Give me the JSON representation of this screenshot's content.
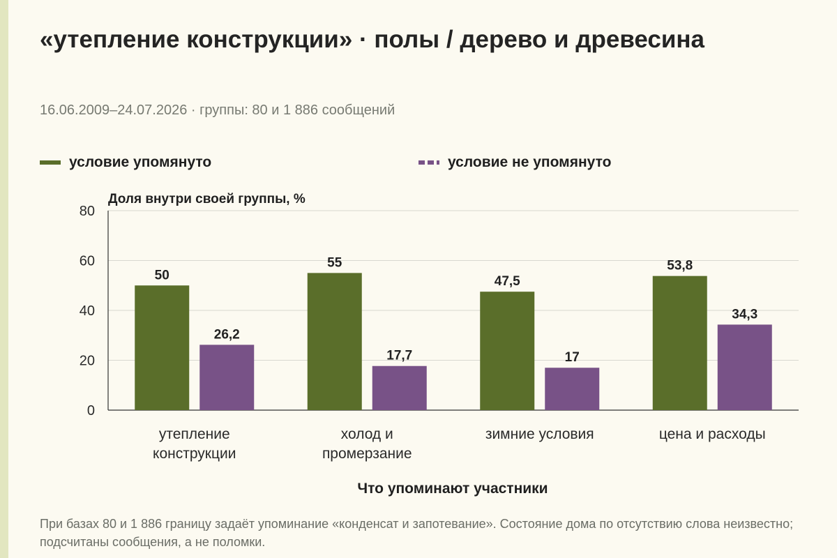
{
  "header": {
    "title": "«утепление конструкции» · полы / дерево и древесина",
    "subtitle": "16.06.2009–24.07.2026 · группы: 80 и 1 886 сообщений"
  },
  "legend": [
    {
      "label": "условие упомянуто",
      "style": "solid",
      "color": "#5a6e2a"
    },
    {
      "label": "условие не упомянуто",
      "style": "dashed",
      "color": "#785287"
    }
  ],
  "chart_data": {
    "type": "bar",
    "ylabel": "Доля внутри своей группы, %",
    "xlabel": "Что упоминают участники",
    "ylim": [
      0,
      80
    ],
    "yticks": [
      0,
      20,
      40,
      60,
      80
    ],
    "grid": true,
    "legend_position": "top",
    "categories": [
      [
        "утепление",
        "конструкции"
      ],
      [
        "холод и",
        "промерзание"
      ],
      [
        "зимние условия"
      ],
      [
        "цена и расходы"
      ]
    ],
    "series": [
      {
        "name": "условие упомянуто",
        "color": "#5a6e2a",
        "values": [
          50,
          55,
          47.5,
          53.8
        ],
        "labels": [
          "50",
          "55",
          "47,5",
          "53,8"
        ]
      },
      {
        "name": "условие не упомянуто",
        "color": "#785287",
        "values": [
          26.2,
          17.7,
          17,
          34.3
        ],
        "labels": [
          "26,2",
          "17,7",
          "17",
          "34,3"
        ]
      }
    ]
  },
  "footer": {
    "note": "При базах 80 и 1 886 границу задаёт упоминание «конденсат и запотевание». Состояние дома по отсутствию слова неизвестно; подсчитаны сообщения, а не поломки."
  }
}
